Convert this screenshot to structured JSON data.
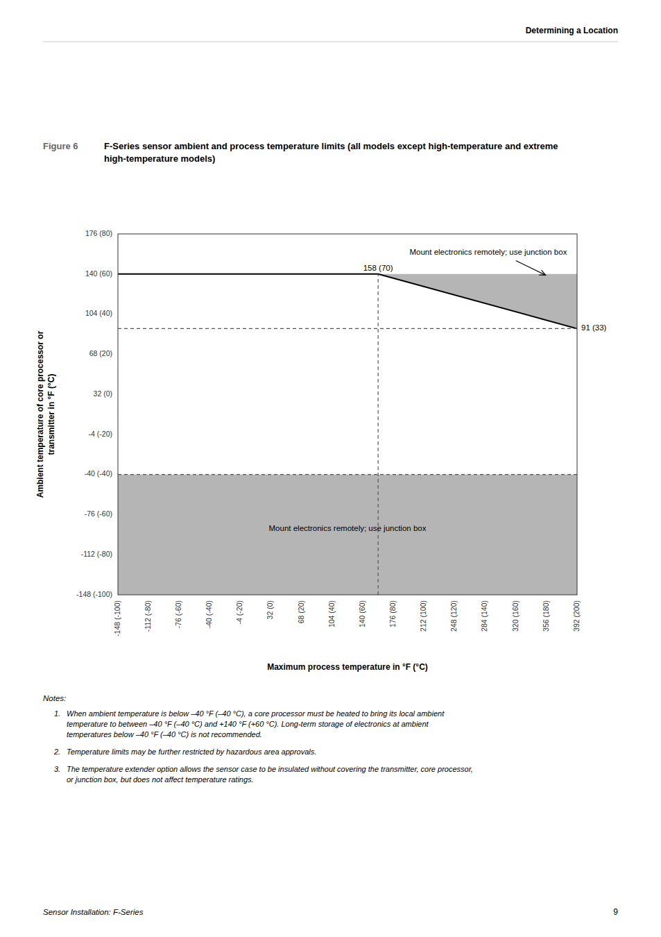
{
  "chart_data": {
    "type": "region",
    "header": "Determining a Location",
    "figure_label": "Figure 6",
    "title": "F-Series sensor ambient and process temperature limits (all models except high-temperature and extreme high-temperature models)",
    "x_label": "Maximum process temperature in °F (°C)",
    "y_label": "Ambient temperature of core processor or\ntransmitter in °F (°C)",
    "xlim": [
      -148,
      392
    ],
    "ylim": [
      -148,
      176
    ],
    "xticks": [
      {
        "value": -148,
        "label": "-148 (-100)"
      },
      {
        "value": -112,
        "label": "-112 (-80)"
      },
      {
        "value": -76,
        "label": "-76 (-60)"
      },
      {
        "value": -40,
        "label": "-40 (-40)"
      },
      {
        "value": -4,
        "label": "-4 (-20)"
      },
      {
        "value": 32,
        "label": "32 (0)"
      },
      {
        "value": 68,
        "label": "68 (20)"
      },
      {
        "value": 104,
        "label": "104 (40)"
      },
      {
        "value": 140,
        "label": "140 (60)"
      },
      {
        "value": 176,
        "label": "176 (80)"
      },
      {
        "value": 212,
        "label": "212 (100)"
      },
      {
        "value": 248,
        "label": "248 (120)"
      },
      {
        "value": 284,
        "label": "284 (140)"
      },
      {
        "value": 320,
        "label": "320 (160)"
      },
      {
        "value": 356,
        "label": "356 (180)"
      },
      {
        "value": 392,
        "label": "392 (200)"
      }
    ],
    "yticks": [
      {
        "value": -148,
        "label": "-148 (-100)"
      },
      {
        "value": -112,
        "label": "-112 (-80)"
      },
      {
        "value": -76,
        "label": "-76 (-60)"
      },
      {
        "value": -40,
        "label": "-40 (-40)"
      },
      {
        "value": -4,
        "label": "-4 (-20)"
      },
      {
        "value": 32,
        "label": "32 (0)"
      },
      {
        "value": 68,
        "label": "68 (20)"
      },
      {
        "value": 104,
        "label": "104 (40)"
      },
      {
        "value": 140,
        "label": "140 (60)"
      },
      {
        "value": 176,
        "label": "176 (80)"
      }
    ],
    "grid": false,
    "series": [
      {
        "type": "polygon",
        "color": "#b5b5b5",
        "x": [
          -148,
          392,
          392,
          -148
        ],
        "values": [
          -148,
          -148,
          -40,
          -40
        ]
      },
      {
        "type": "polygon",
        "color": "#b5b5b5",
        "x": [
          158,
          392,
          392
        ],
        "values": [
          140,
          140,
          91
        ]
      },
      {
        "type": "line",
        "line_style": "solid",
        "color": "#000000",
        "x": [
          -148,
          158,
          392
        ],
        "values": [
          140,
          140,
          91
        ]
      },
      {
        "type": "line",
        "line_style": "dashed",
        "color": "#555555",
        "x": [
          158,
          158
        ],
        "values": [
          -148,
          140
        ]
      },
      {
        "type": "line",
        "line_style": "dashed",
        "color": "#555555",
        "x": [
          -148,
          392
        ],
        "values": [
          -40,
          -40
        ]
      },
      {
        "type": "line",
        "line_style": "dashed",
        "color": "#555555",
        "x": [
          -148,
          392
        ],
        "values": [
          91,
          91
        ]
      }
    ],
    "annotations": [
      {
        "text": "Mount electronics remotely; use junction box",
        "x": 122,
        "y": -94
      },
      {
        "text": "158 (70)",
        "x": 158,
        "y": 140
      },
      {
        "text": "91 (33)",
        "x": 392,
        "y": 91
      },
      {
        "text": "Mount electronics remotely; use junction box",
        "x": 195,
        "y": 157,
        "arrow": [
          [
            320,
            152
          ],
          [
            355,
            139
          ]
        ]
      }
    ],
    "notes_title": "Notes:",
    "notes": [
      {
        "label": "1.",
        "text": "When ambient temperature is below –40 °F (–40 °C), a core processor must be heated to bring its local ambient\ntemperature to between –40 °F (–40 °C) and +140 °F (+60 °C). Long-term storage of electronics at ambient\ntemperatures below –40 °F (–40 °C) is not recommended."
      },
      {
        "label": "2.",
        "text": "Temperature limits may be further restricted by hazardous area approvals."
      },
      {
        "label": "3.",
        "text": "The temperature extender option allows the sensor case to be insulated without covering the transmitter, core processor,\nor junction box, but does not affect temperature ratings."
      }
    ],
    "footer": "Sensor Installation: F-Series",
    "page_number": "9"
  }
}
